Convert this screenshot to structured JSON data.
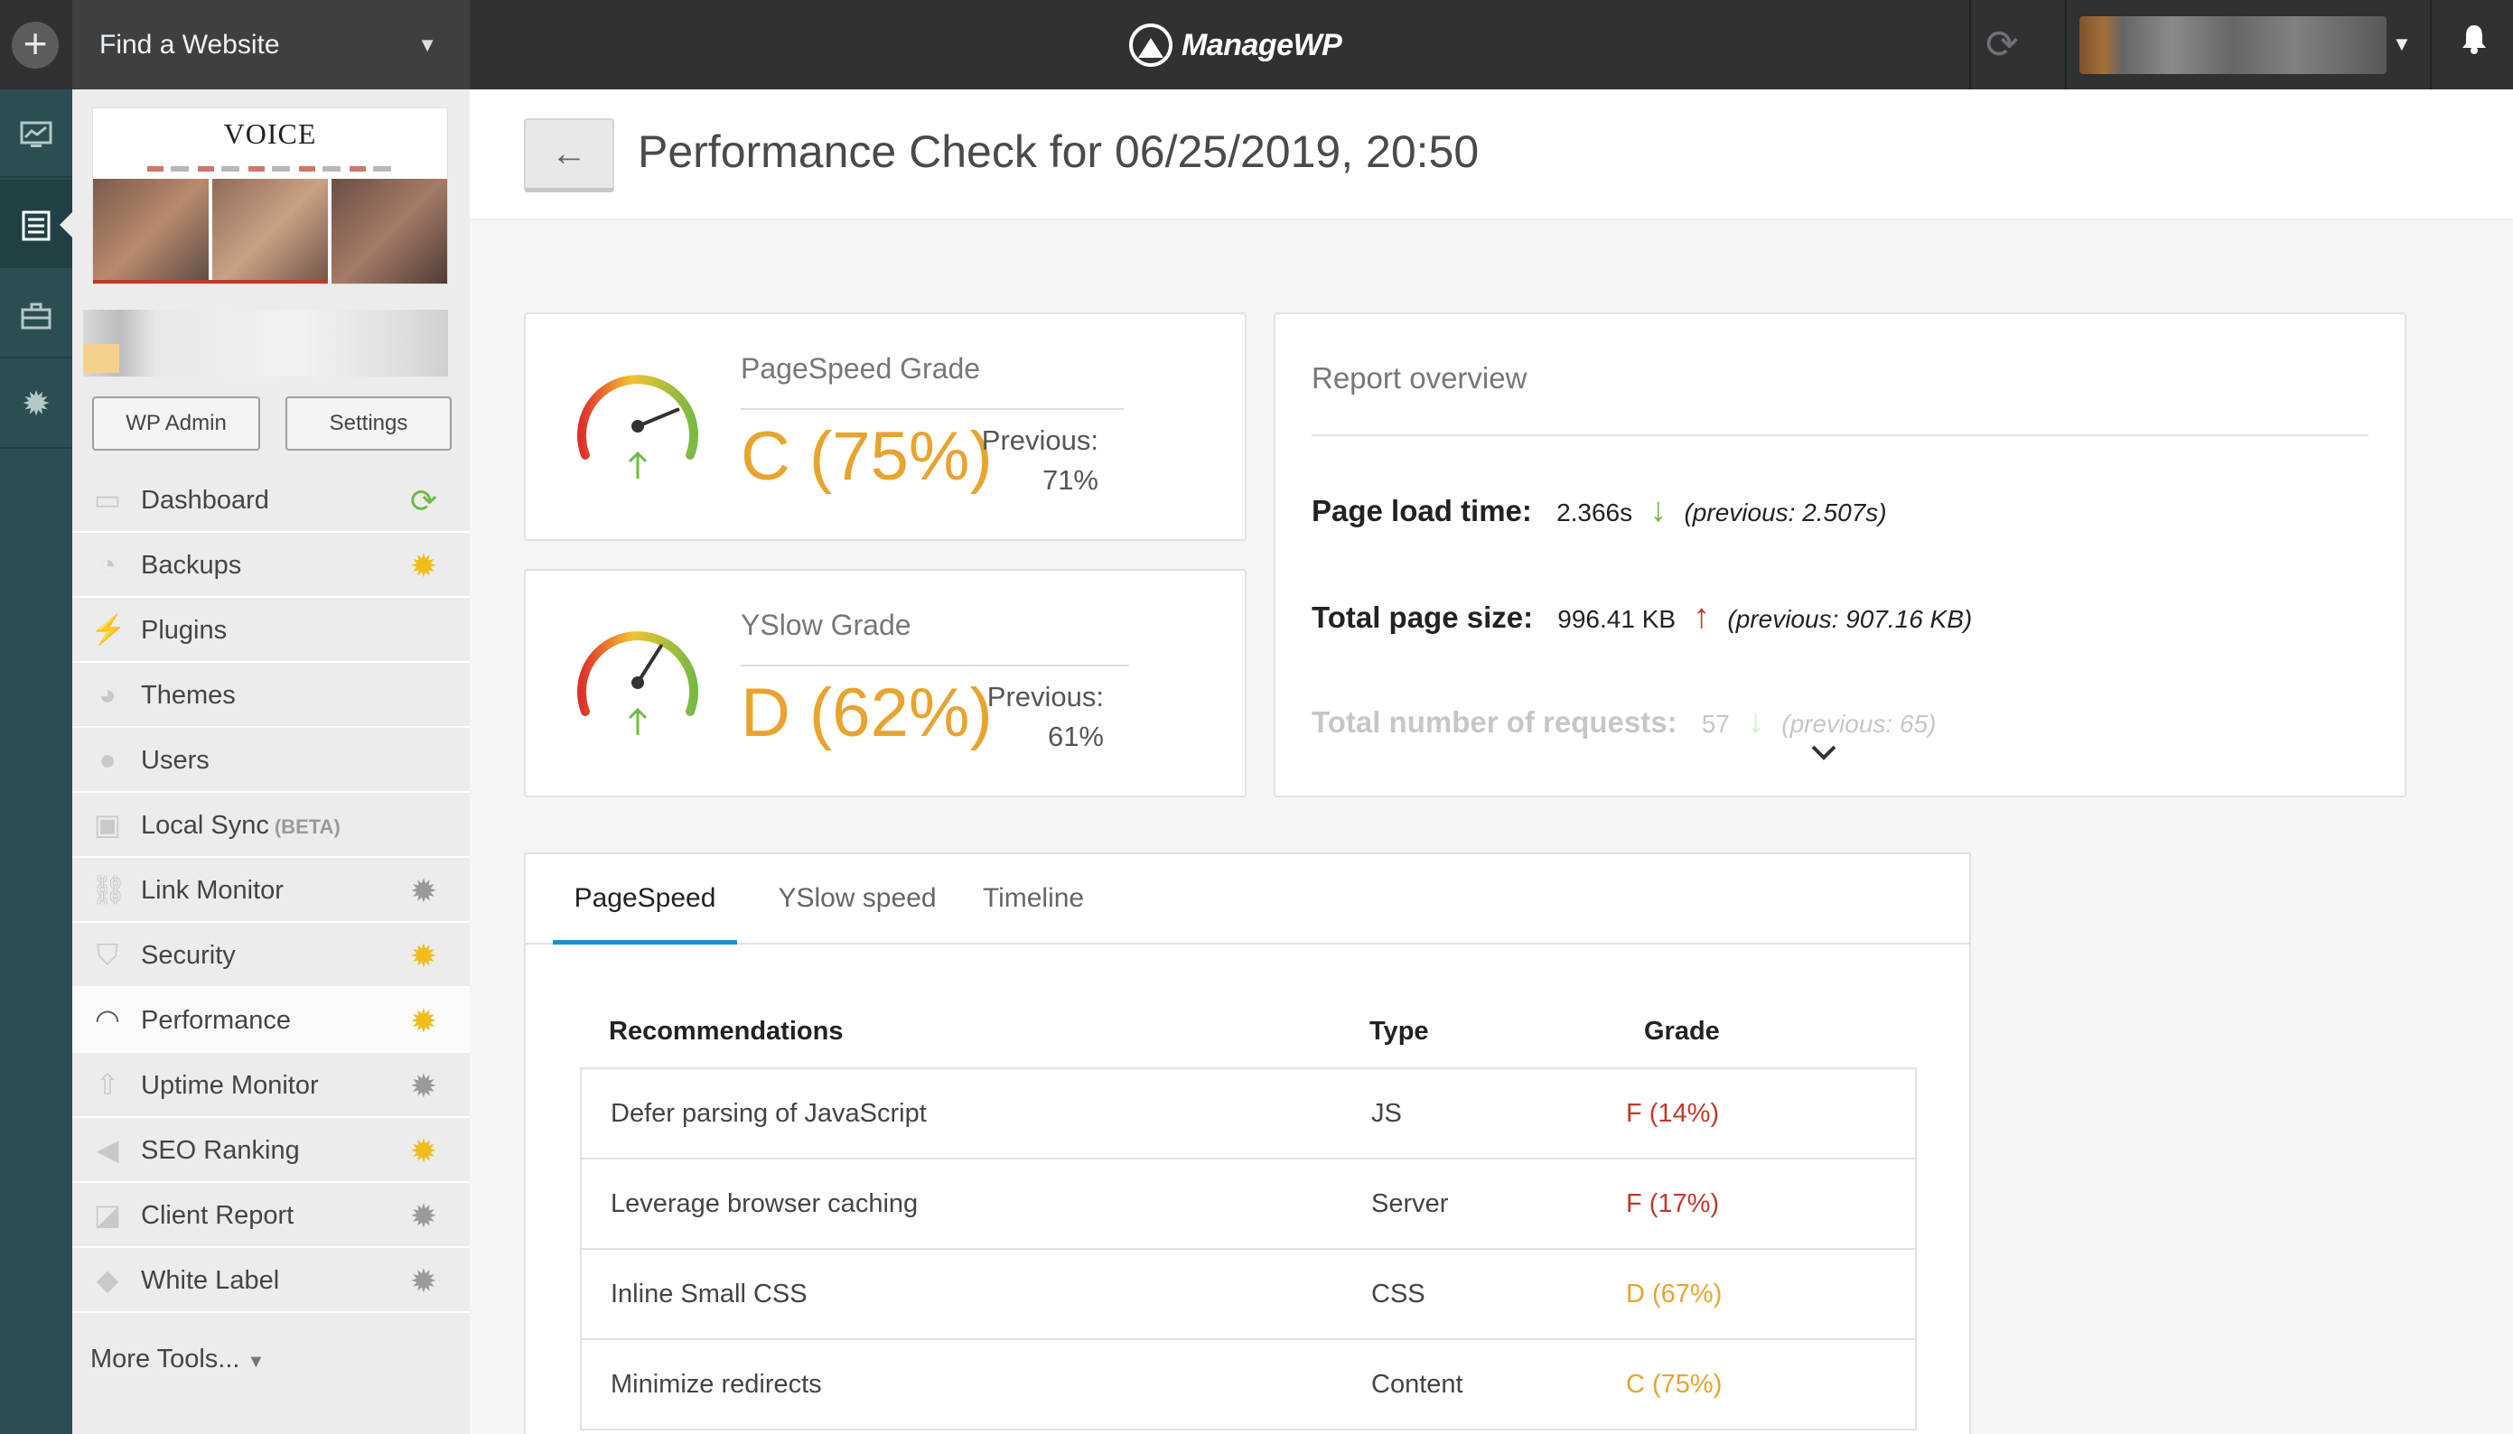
{
  "topbar": {
    "site_selector": "Find a Website",
    "brand": "ManageWP"
  },
  "site": {
    "thumbnail_title": "VOICE",
    "wp_admin_label": "WP Admin",
    "settings_label": "Settings"
  },
  "menu": [
    {
      "label": "Dashboard",
      "icon": "monitor-icon",
      "status": "refresh"
    },
    {
      "label": "Backups",
      "icon": "backup-icon",
      "status": "gear-yellow"
    },
    {
      "label": "Plugins",
      "icon": "plugin-icon",
      "status": "none"
    },
    {
      "label": "Themes",
      "icon": "palette-icon",
      "status": "none"
    },
    {
      "label": "Users",
      "icon": "user-icon",
      "status": "none"
    },
    {
      "label": "Local Sync",
      "badge": "(BETA)",
      "icon": "sync-icon",
      "status": "none"
    },
    {
      "label": "Link Monitor",
      "icon": "link-icon",
      "status": "gear-gray"
    },
    {
      "label": "Security",
      "icon": "shield-icon",
      "status": "gear-yellow"
    },
    {
      "label": "Performance",
      "icon": "speedometer-icon",
      "status": "gear-yellow"
    },
    {
      "label": "Uptime Monitor",
      "icon": "arrow-up-icon",
      "status": "gear-gray"
    },
    {
      "label": "SEO Ranking",
      "icon": "megaphone-icon",
      "status": "gear-yellow"
    },
    {
      "label": "Client Report",
      "icon": "chart-icon",
      "status": "gear-gray"
    },
    {
      "label": "White Label",
      "icon": "tag-icon",
      "status": "gear-gray"
    }
  ],
  "more_tools": "More Tools...",
  "page": {
    "back_icon": "←",
    "title": "Performance Check for 06/25/2019, 20:50"
  },
  "pagespeed": {
    "title": "PageSpeed Grade",
    "value": "C (75%)",
    "previous_label": "Previous:",
    "previous_value": "71%",
    "score": 75
  },
  "yslow": {
    "title": "YSlow Grade",
    "value": "D (62%)",
    "previous_label": "Previous:",
    "previous_value": "61%",
    "score": 62
  },
  "overview": {
    "title": "Report overview",
    "load_time_label": "Page load time:",
    "load_time_value": "2.366s",
    "load_time_prev": "(previous: 2.507s)",
    "page_size_label": "Total page size:",
    "page_size_value": "996.41 KB",
    "page_size_prev": "(previous: 907.16 KB)",
    "requests_label": "Total number of requests:",
    "requests_value": "57",
    "requests_prev": "(previous: 65)"
  },
  "tabs": [
    "PageSpeed",
    "YSlow speed",
    "Timeline"
  ],
  "recommendations": {
    "headers": {
      "name": "Recommendations",
      "type": "Type",
      "grade": "Grade"
    },
    "rows": [
      {
        "name": "Defer parsing of JavaScript",
        "type": "JS",
        "grade": "F (14%)"
      },
      {
        "name": "Leverage browser caching",
        "type": "Server",
        "grade": "F (17%)"
      },
      {
        "name": "Inline Small CSS",
        "type": "CSS",
        "grade": "D (67%)"
      },
      {
        "name": "Minimize redirects",
        "type": "Content",
        "grade": "C (75%)"
      }
    ]
  },
  "colors": {
    "accent_blue": "#1f8ecf",
    "grade_amber": "#e8a42f",
    "grade_red": "#c0392b",
    "status_green": "#6cbc45",
    "status_yellow": "#f0bd1d"
  }
}
